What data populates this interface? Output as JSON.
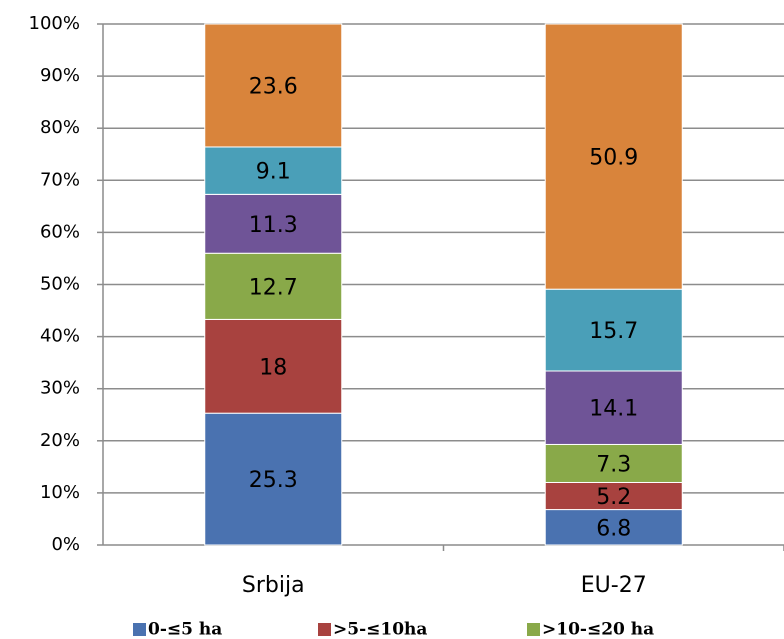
{
  "chart_data": {
    "type": "stacked_bar_100",
    "categories": [
      "Srbija",
      "EU-27"
    ],
    "series": [
      {
        "name": "0-≤5 ha",
        "color": "#4a72b0",
        "values": [
          25.3,
          6.8
        ]
      },
      {
        "name": ">5-≤10ha",
        "color": "#a8423f",
        "values": [
          18,
          5.2
        ]
      },
      {
        "name": ">10-≤20 ha",
        "color": "#89a949",
        "values": [
          12.7,
          7.3
        ]
      },
      {
        "color": "#6f5497",
        "values": [
          11.3,
          14.1
        ]
      },
      {
        "color": "#4a9fb8",
        "values": [
          9.1,
          15.7
        ]
      },
      {
        "color": "#d9843b",
        "values": [
          23.6,
          50.9
        ]
      }
    ],
    "ylim": [
      0,
      100
    ],
    "yticks": [
      {
        "value": 0,
        "label": "0%"
      },
      {
        "value": 10,
        "label": "10%"
      },
      {
        "value": 20,
        "label": "20%"
      },
      {
        "value": 30,
        "label": "30%"
      },
      {
        "value": 40,
        "label": "40%"
      },
      {
        "value": 50,
        "label": "50%"
      },
      {
        "value": 60,
        "label": "60%"
      },
      {
        "value": 70,
        "label": "70%"
      },
      {
        "value": 80,
        "label": "80%"
      },
      {
        "value": 90,
        "label": "90%"
      },
      {
        "value": 100,
        "label": "100%"
      }
    ],
    "grid": true
  }
}
